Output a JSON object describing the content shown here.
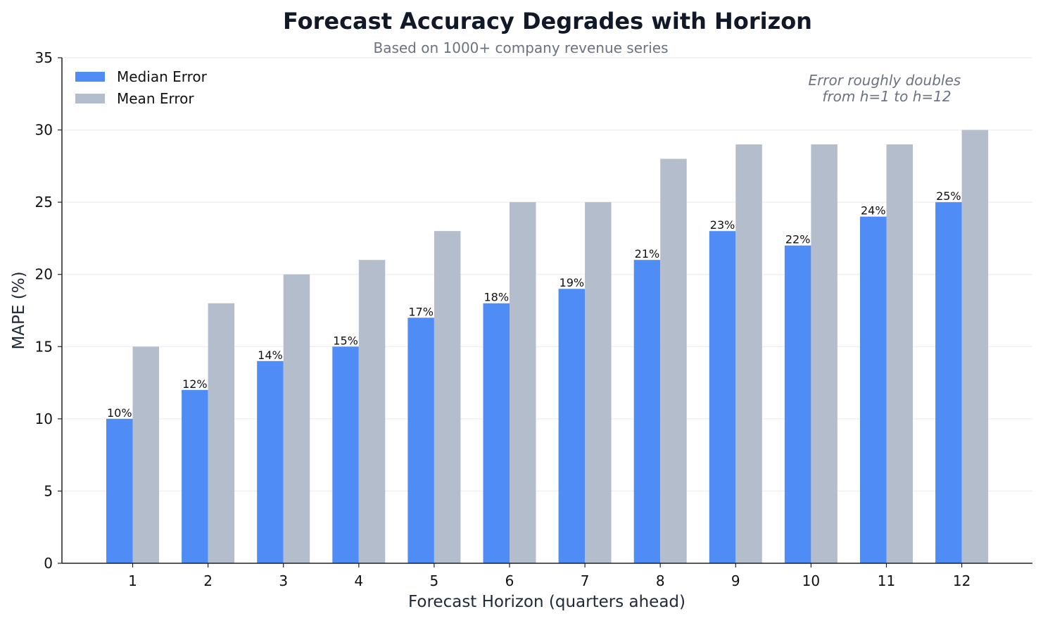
{
  "chart_data": {
    "type": "bar",
    "title": "Forecast Accuracy Degrades with Horizon",
    "subtitle": "Based on 1000+ company revenue series",
    "xlabel": "Forecast Horizon (quarters ahead)",
    "ylabel": "MAPE (%)",
    "ylim": [
      0,
      35
    ],
    "yticks": [
      0,
      5,
      10,
      15,
      20,
      25,
      30,
      35
    ],
    "categories": [
      "1",
      "2",
      "3",
      "4",
      "5",
      "6",
      "7",
      "8",
      "9",
      "10",
      "11",
      "12"
    ],
    "series": [
      {
        "name": "Median Error",
        "color": "#4f8cf5",
        "values": [
          10,
          12,
          14,
          15,
          17,
          18,
          19,
          21,
          23,
          22,
          24,
          25
        ],
        "labels": [
          "10%",
          "12%",
          "14%",
          "15%",
          "17%",
          "18%",
          "19%",
          "21%",
          "23%",
          "22%",
          "24%",
          "25%"
        ]
      },
      {
        "name": "Mean Error",
        "color": "#b4bdcb",
        "values": [
          15,
          18,
          20,
          21,
          23,
          25,
          25,
          28,
          29,
          29,
          29,
          30
        ]
      }
    ],
    "grid": "horizontal",
    "legend": "top-left",
    "annotation": [
      "Error roughly doubles",
      "from h=1 to h=12"
    ]
  }
}
